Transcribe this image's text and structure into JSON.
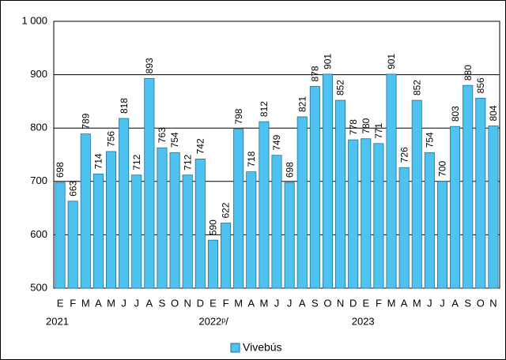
{
  "chart_data": {
    "type": "bar",
    "categories": [
      "E",
      "F",
      "M",
      "A",
      "M",
      "J",
      "J",
      "A",
      "S",
      "O",
      "N",
      "D",
      "E",
      "F",
      "M",
      "A",
      "M",
      "J",
      "J",
      "A",
      "S",
      "O",
      "N",
      "D",
      "E",
      "F",
      "M",
      "A",
      "M",
      "J",
      "J",
      "A",
      "S",
      "O",
      "N"
    ],
    "groups": [
      {
        "label": "2021",
        "count": 12
      },
      {
        "label": "2022ᵖ/",
        "count": 12
      },
      {
        "label": "2023",
        "count": 11
      }
    ],
    "series": [
      {
        "name": "Vivebús",
        "color": "#4fc3ef",
        "values": [
          698,
          663,
          789,
          714,
          756,
          818,
          712,
          893,
          763,
          754,
          712,
          742,
          590,
          622,
          798,
          718,
          812,
          749,
          698,
          821,
          878,
          901,
          852,
          778,
          780,
          771,
          901,
          726,
          852,
          754,
          700,
          803,
          880,
          856,
          804
        ]
      }
    ],
    "ylim": [
      500,
      1000
    ],
    "yticks": [
      500,
      600,
      700,
      800,
      900,
      {
        "value": 1000,
        "label": "1 000"
      }
    ],
    "grid": true,
    "legend": "bottom"
  }
}
